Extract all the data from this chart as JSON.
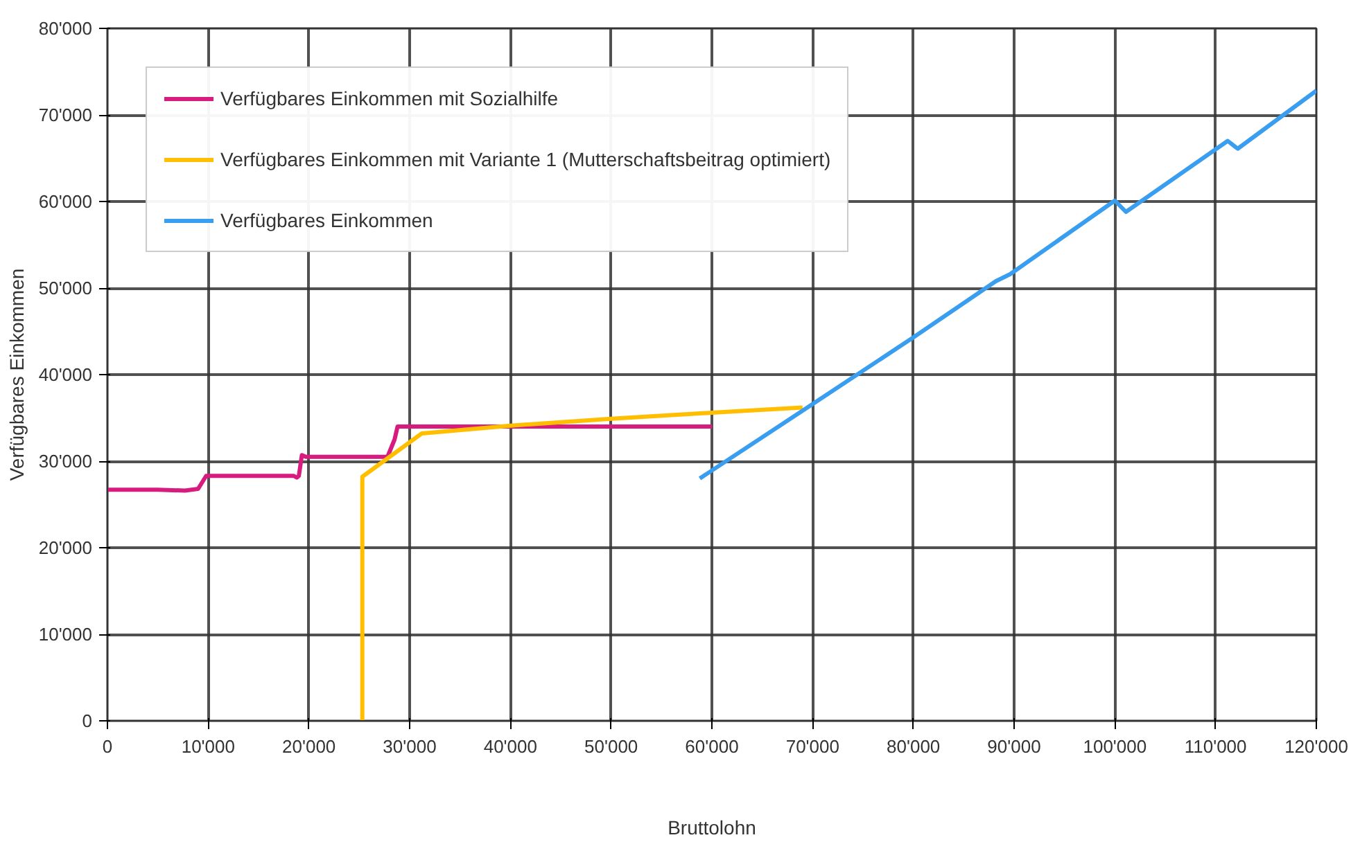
{
  "chart_data": {
    "type": "line",
    "xlabel": "Bruttolohn",
    "ylabel": "Verfügbares Einkommen",
    "xlim": [
      0,
      120000
    ],
    "ylim": [
      0,
      80000
    ],
    "xticks": [
      0,
      {
        "value": 10000,
        "label": "10'000"
      },
      {
        "value": 20000,
        "label": "20'000"
      },
      {
        "value": 30000,
        "label": "30'000"
      },
      {
        "value": 40000,
        "label": "40'000"
      },
      {
        "value": 50000,
        "label": "50'000"
      },
      {
        "value": 60000,
        "label": "60'000"
      },
      {
        "value": 70000,
        "label": "70'000"
      },
      {
        "value": 80000,
        "label": "80'000"
      },
      {
        "value": 90000,
        "label": "90'000"
      },
      {
        "value": 100000,
        "label": "100'000"
      },
      {
        "value": 110000,
        "label": "110'000"
      },
      {
        "value": 120000,
        "label": "120'000"
      }
    ],
    "yticks": [
      0,
      {
        "value": 10000,
        "label": "10'000"
      },
      {
        "value": 20000,
        "label": "20'000"
      },
      {
        "value": 30000,
        "label": "30'000"
      },
      {
        "value": 40000,
        "label": "40'000"
      },
      {
        "value": 50000,
        "label": "50'000"
      },
      {
        "value": 60000,
        "label": "60'000"
      },
      {
        "value": 70000,
        "label": "70'000"
      },
      {
        "value": 80000,
        "label": "80'000"
      }
    ],
    "grid": true,
    "legend": "top left",
    "marker": "none",
    "line_style": "solid",
    "series": [
      {
        "name": "Verfügbares Einkommen mit Sozialhilfe",
        "color": "#d81b7f",
        "x": [
          0,
          5000,
          7700,
          9000,
          9800,
          15000,
          18500,
          18800,
          19000,
          19300,
          19700,
          25000,
          27800,
          28500,
          28800,
          35000,
          45000,
          60000
        ],
        "values": [
          26700,
          26700,
          26600,
          26800,
          28300,
          28300,
          28300,
          28100,
          28300,
          30700,
          30500,
          30500,
          30500,
          32500,
          34000,
          34000,
          34000,
          34000
        ]
      },
      {
        "name": "Verfügbares Einkommen mit Variante 1 (Mutterschaftsbeitrag optimiert)",
        "color": "#ffbf00",
        "x": [
          25300,
          25300,
          31200,
          40000,
          50000,
          60000,
          69000
        ],
        "values": [
          0,
          28200,
          33200,
          34100,
          34900,
          35600,
          36200
        ]
      },
      {
        "name": "Verfügbares Einkommen",
        "color": "#3a9ef0",
        "x": [
          58800,
          70000,
          80000,
          88200,
          89600,
          100000,
          101100,
          111200,
          112200,
          120000
        ],
        "values": [
          28000,
          36600,
          44300,
          50800,
          51600,
          60100,
          58800,
          67000,
          66100,
          72800
        ]
      }
    ]
  }
}
